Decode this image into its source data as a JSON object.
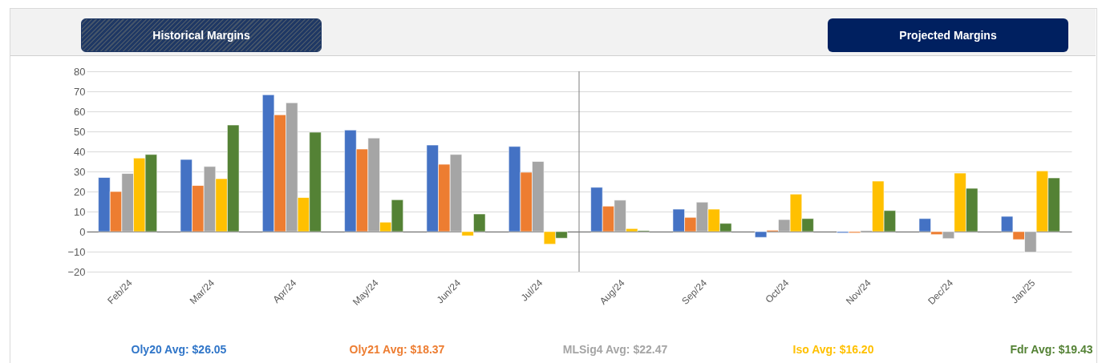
{
  "chart_data": {
    "type": "bar",
    "categories": [
      "Feb/24",
      "Mar/24",
      "Apr/24",
      "May/24",
      "Jun/24",
      "Jul/24",
      "Aug/24",
      "Sep/24",
      "Oct/24",
      "Nov/24",
      "Dec/24",
      "Jan/25"
    ],
    "series": [
      {
        "color": "#4472c4",
        "values": [
          27,
          36,
          68.3,
          50.7,
          43.2,
          42.5,
          22.1,
          11.2,
          -2.9,
          -0.7,
          6.5,
          7.6
        ]
      },
      {
        "color": "#ed7d31",
        "values": [
          20,
          23,
          58.3,
          41.2,
          33.6,
          29.6,
          12.7,
          7.1,
          0.7,
          -0.7,
          -1.5,
          -4
        ]
      },
      {
        "color": "#a5a5a5",
        "values": [
          29,
          32.5,
          64.3,
          46.7,
          38.5,
          35,
          15.7,
          14.7,
          6,
          0.5,
          -3.5,
          -10.3
        ]
      },
      {
        "color": "#ffc000",
        "values": [
          36.7,
          26.4,
          17,
          4.7,
          -2.1,
          -6.3,
          1.5,
          11.2,
          18.7,
          25.2,
          29.2,
          30.3
        ]
      },
      {
        "color": "#548235",
        "values": [
          38.5,
          53.2,
          49.6,
          15.9,
          8.8,
          -3.3,
          0.5,
          4.1,
          6.5,
          10.5,
          21.6,
          26.8
        ]
      }
    ],
    "ylim": [
      -20,
      80
    ],
    "yticks": [
      -20,
      -10,
      0,
      10,
      20,
      30,
      40,
      50,
      60,
      70,
      80
    ],
    "grid": "y",
    "ref_lines": [
      {
        "axis": "x",
        "value": "Aug/24",
        "color": "#7f7f7f"
      }
    ],
    "annotations": [
      "Historical Margins",
      "Projected Margins",
      "Oly20 Avg: $26.05",
      "Oly21 Avg: $18.37",
      "MLSig4 Avg: $22.47",
      "Iso Avg: $16.20",
      "Fdr Avg: $19.43"
    ]
  }
}
